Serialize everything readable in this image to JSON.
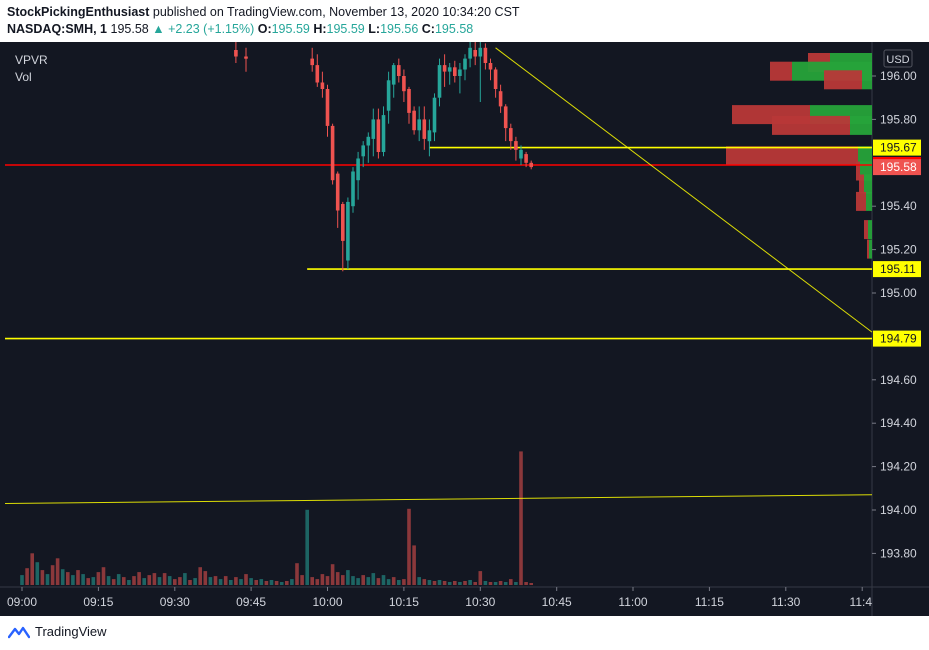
{
  "header": {
    "author": "StockPickingEnthusiast",
    "published_text": "published on TradingView.com, November 13, 2020 10:34:20 CST",
    "symbol": "NASDAQ:SMH, 1",
    "last": "195.58",
    "change": "▲ +2.23 (+1.15%)",
    "o_label": "O:",
    "o_value": "195.59",
    "h_label": "H:",
    "h_value": "195.59",
    "l_label": "L:",
    "l_value": "195.56",
    "c_label": "C:",
    "c_value": "195.58"
  },
  "indicators": [
    "VPVR",
    "Vol"
  ],
  "footer": {
    "brand": "TradingView"
  },
  "colors": {
    "background": "#131722",
    "up": "#26a69a",
    "down": "#ef5350",
    "yellow": "#ffff00",
    "red_line": "#ff0000",
    "vpvr_up": "#26a33a",
    "vpvr_down": "#b83838"
  },
  "chart_data": {
    "type": "candlestick",
    "currency": "USD",
    "x_ticks": [
      "09:00",
      "09:15",
      "09:30",
      "09:45",
      "10:00",
      "10:15",
      "10:30",
      "10:45",
      "11:00",
      "11:15",
      "11:30",
      "11:4"
    ],
    "y_ticks": [
      "196.00",
      "195.80",
      "195.40",
      "195.20",
      "195.00",
      "194.60",
      "194.40",
      "194.20",
      "194.00",
      "193.80"
    ],
    "ylim": [
      193.67,
      196.15
    ],
    "price_labels": [
      {
        "value": "195.67",
        "style": "yellow"
      },
      {
        "value": "195.59",
        "style": "red"
      },
      {
        "value": "195.58",
        "style": "current"
      },
      {
        "value": "195.11",
        "style": "yellow"
      },
      {
        "value": "194.79",
        "style": "yellow"
      }
    ],
    "horizontal_lines": [
      {
        "price": 195.67,
        "from_minute": 80,
        "color": "yellow"
      },
      {
        "price": 195.59,
        "from_minute": 0,
        "color": "red"
      },
      {
        "price": 195.11,
        "from_minute": 56,
        "color": "yellow"
      },
      {
        "price": 194.79,
        "from_minute": 0,
        "color": "yellow"
      }
    ],
    "trend_lines": [
      {
        "from": {
          "minute": 93,
          "price": 196.13
        },
        "to": {
          "minute": 180,
          "price": 194.82
        }
      },
      {
        "from": {
          "minute": 0,
          "price": 194.03
        },
        "to": {
          "minute": 180,
          "price": 194.07
        }
      }
    ],
    "candles_visible": [
      {
        "minute": 42,
        "open": 196.12,
        "high": 196.16,
        "low": 196.06,
        "close": 196.09
      },
      {
        "minute": 44,
        "open": 196.09,
        "high": 196.13,
        "low": 196.02,
        "close": 196.08
      },
      {
        "minute": 57,
        "open": 196.08,
        "high": 196.13,
        "low": 196.02,
        "close": 196.05
      },
      {
        "minute": 58,
        "open": 196.05,
        "high": 196.1,
        "low": 195.95,
        "close": 195.97
      },
      {
        "minute": 59,
        "open": 195.97,
        "high": 196.02,
        "low": 195.9,
        "close": 195.94
      },
      {
        "minute": 60,
        "open": 195.94,
        "high": 195.96,
        "low": 195.72,
        "close": 195.77
      },
      {
        "minute": 61,
        "open": 195.77,
        "high": 195.78,
        "low": 195.5,
        "close": 195.52
      },
      {
        "minute": 62,
        "open": 195.55,
        "high": 195.56,
        "low": 195.3,
        "close": 195.38
      },
      {
        "minute": 63,
        "open": 195.41,
        "high": 195.42,
        "low": 195.1,
        "close": 195.24
      },
      {
        "minute": 64,
        "open": 195.15,
        "high": 195.44,
        "low": 195.11,
        "close": 195.42
      },
      {
        "minute": 65,
        "open": 195.4,
        "high": 195.58,
        "low": 195.37,
        "close": 195.56
      },
      {
        "minute": 66,
        "open": 195.52,
        "high": 195.65,
        "low": 195.43,
        "close": 195.62
      },
      {
        "minute": 67,
        "open": 195.63,
        "high": 195.7,
        "low": 195.58,
        "close": 195.68
      },
      {
        "minute": 68,
        "open": 195.68,
        "high": 195.74,
        "low": 195.6,
        "close": 195.72
      },
      {
        "minute": 69,
        "open": 195.71,
        "high": 195.85,
        "low": 195.63,
        "close": 195.8
      },
      {
        "minute": 70,
        "open": 195.8,
        "high": 195.85,
        "low": 195.62,
        "close": 195.65
      },
      {
        "minute": 71,
        "open": 195.65,
        "high": 195.86,
        "low": 195.63,
        "close": 195.82
      },
      {
        "minute": 72,
        "open": 195.84,
        "high": 196.02,
        "low": 195.78,
        "close": 195.98
      },
      {
        "minute": 73,
        "open": 195.96,
        "high": 196.06,
        "low": 195.9,
        "close": 196.05
      },
      {
        "minute": 74,
        "open": 196.05,
        "high": 196.08,
        "low": 195.97,
        "close": 196.0
      },
      {
        "minute": 75,
        "open": 196.0,
        "high": 196.03,
        "low": 195.88,
        "close": 195.93
      },
      {
        "minute": 76,
        "open": 195.94,
        "high": 195.95,
        "low": 195.78,
        "close": 195.83
      },
      {
        "minute": 77,
        "open": 195.84,
        "high": 195.86,
        "low": 195.73,
        "close": 195.75
      },
      {
        "minute": 78,
        "open": 195.75,
        "high": 195.86,
        "low": 195.7,
        "close": 195.8
      },
      {
        "minute": 79,
        "open": 195.8,
        "high": 195.86,
        "low": 195.66,
        "close": 195.71
      },
      {
        "minute": 80,
        "open": 195.7,
        "high": 195.8,
        "low": 195.63,
        "close": 195.75
      },
      {
        "minute": 81,
        "open": 195.74,
        "high": 195.92,
        "low": 195.7,
        "close": 195.9
      },
      {
        "minute": 82,
        "open": 195.9,
        "high": 196.08,
        "low": 195.86,
        "close": 196.05
      },
      {
        "minute": 83,
        "open": 196.05,
        "high": 196.1,
        "low": 195.95,
        "close": 196.02
      },
      {
        "minute": 84,
        "open": 196.02,
        "high": 196.06,
        "low": 195.96,
        "close": 196.04
      },
      {
        "minute": 85,
        "open": 196.04,
        "high": 196.07,
        "low": 195.97,
        "close": 196.0
      },
      {
        "minute": 86,
        "open": 196.0,
        "high": 196.06,
        "low": 195.92,
        "close": 196.03
      },
      {
        "minute": 87,
        "open": 196.03,
        "high": 196.1,
        "low": 195.98,
        "close": 196.08
      },
      {
        "minute": 88,
        "open": 196.08,
        "high": 196.16,
        "low": 196.04,
        "close": 196.13
      },
      {
        "minute": 89,
        "open": 196.12,
        "high": 196.16,
        "low": 196.05,
        "close": 196.09
      },
      {
        "minute": 90,
        "open": 196.09,
        "high": 196.16,
        "low": 195.88,
        "close": 196.13
      },
      {
        "minute": 91,
        "open": 196.13,
        "high": 196.15,
        "low": 196.03,
        "close": 196.06
      },
      {
        "minute": 92,
        "open": 196.06,
        "high": 196.08,
        "low": 195.98,
        "close": 196.03
      },
      {
        "minute": 93,
        "open": 196.03,
        "high": 196.04,
        "low": 195.9,
        "close": 195.94
      },
      {
        "minute": 94,
        "open": 195.93,
        "high": 195.96,
        "low": 195.83,
        "close": 195.86
      },
      {
        "minute": 95,
        "open": 195.86,
        "high": 195.87,
        "low": 195.7,
        "close": 195.76
      },
      {
        "minute": 96,
        "open": 195.76,
        "high": 195.78,
        "low": 195.66,
        "close": 195.7
      },
      {
        "minute": 97,
        "open": 195.7,
        "high": 195.72,
        "low": 195.61,
        "close": 195.66
      },
      {
        "minute": 98,
        "open": 195.62,
        "high": 195.68,
        "low": 195.59,
        "close": 195.66
      },
      {
        "minute": 99,
        "open": 195.64,
        "high": 195.65,
        "low": 195.58,
        "close": 195.6
      },
      {
        "minute": 100,
        "open": 195.6,
        "high": 195.61,
        "low": 195.57,
        "close": 195.58
      }
    ],
    "volume_bars": [
      {
        "minute": 0,
        "value": 10,
        "dir": "up"
      },
      {
        "minute": 1,
        "value": 17,
        "dir": "down"
      },
      {
        "minute": 2,
        "value": 32,
        "dir": "down"
      },
      {
        "minute": 3,
        "value": 23,
        "dir": "up"
      },
      {
        "minute": 4,
        "value": 15,
        "dir": "down"
      },
      {
        "minute": 5,
        "value": 11,
        "dir": "up"
      },
      {
        "minute": 6,
        "value": 20,
        "dir": "down"
      },
      {
        "minute": 7,
        "value": 27,
        "dir": "down"
      },
      {
        "minute": 8,
        "value": 16,
        "dir": "up"
      },
      {
        "minute": 9,
        "value": 13,
        "dir": "down"
      },
      {
        "minute": 10,
        "value": 10,
        "dir": "up"
      },
      {
        "minute": 11,
        "value": 15,
        "dir": "down"
      },
      {
        "minute": 12,
        "value": 11,
        "dir": "up"
      },
      {
        "minute": 13,
        "value": 7,
        "dir": "down"
      },
      {
        "minute": 14,
        "value": 8,
        "dir": "up"
      },
      {
        "minute": 15,
        "value": 13,
        "dir": "down"
      },
      {
        "minute": 16,
        "value": 18,
        "dir": "down"
      },
      {
        "minute": 17,
        "value": 9,
        "dir": "up"
      },
      {
        "minute": 18,
        "value": 6,
        "dir": "down"
      },
      {
        "minute": 19,
        "value": 11,
        "dir": "up"
      },
      {
        "minute": 20,
        "value": 8,
        "dir": "down"
      },
      {
        "minute": 21,
        "value": 5,
        "dir": "up"
      },
      {
        "minute": 22,
        "value": 9,
        "dir": "down"
      },
      {
        "minute": 23,
        "value": 13,
        "dir": "down"
      },
      {
        "minute": 24,
        "value": 7,
        "dir": "up"
      },
      {
        "minute": 25,
        "value": 10,
        "dir": "down"
      },
      {
        "minute": 26,
        "value": 12,
        "dir": "down"
      },
      {
        "minute": 27,
        "value": 8,
        "dir": "up"
      },
      {
        "minute": 28,
        "value": 12,
        "dir": "down"
      },
      {
        "minute": 29,
        "value": 9,
        "dir": "up"
      },
      {
        "minute": 30,
        "value": 6,
        "dir": "down"
      },
      {
        "minute": 31,
        "value": 8,
        "dir": "down"
      },
      {
        "minute": 32,
        "value": 12,
        "dir": "up"
      },
      {
        "minute": 33,
        "value": 5,
        "dir": "down"
      },
      {
        "minute": 34,
        "value": 7,
        "dir": "up"
      },
      {
        "minute": 35,
        "value": 18,
        "dir": "down"
      },
      {
        "minute": 36,
        "value": 14,
        "dir": "down"
      },
      {
        "minute": 37,
        "value": 8,
        "dir": "up"
      },
      {
        "minute": 38,
        "value": 9,
        "dir": "down"
      },
      {
        "minute": 39,
        "value": 6,
        "dir": "up"
      },
      {
        "minute": 40,
        "value": 9,
        "dir": "down"
      },
      {
        "minute": 41,
        "value": 5,
        "dir": "up"
      },
      {
        "minute": 42,
        "value": 8,
        "dir": "down"
      },
      {
        "minute": 43,
        "value": 6,
        "dir": "up"
      },
      {
        "minute": 44,
        "value": 11,
        "dir": "down"
      },
      {
        "minute": 45,
        "value": 7,
        "dir": "up"
      },
      {
        "minute": 46,
        "value": 5,
        "dir": "down"
      },
      {
        "minute": 47,
        "value": 6,
        "dir": "up"
      },
      {
        "minute": 48,
        "value": 4,
        "dir": "down"
      },
      {
        "minute": 49,
        "value": 5,
        "dir": "up"
      },
      {
        "minute": 50,
        "value": 4,
        "dir": "down"
      },
      {
        "minute": 51,
        "value": 3,
        "dir": "up"
      },
      {
        "minute": 52,
        "value": 4,
        "dir": "down"
      },
      {
        "minute": 53,
        "value": 6,
        "dir": "up"
      },
      {
        "minute": 54,
        "value": 22,
        "dir": "down"
      },
      {
        "minute": 55,
        "value": 10,
        "dir": "down"
      },
      {
        "minute": 56,
        "value": 76,
        "dir": "up"
      },
      {
        "minute": 57,
        "value": 8,
        "dir": "down"
      },
      {
        "minute": 58,
        "value": 6,
        "dir": "down"
      },
      {
        "minute": 59,
        "value": 11,
        "dir": "down"
      },
      {
        "minute": 60,
        "value": 9,
        "dir": "down"
      },
      {
        "minute": 61,
        "value": 21,
        "dir": "down"
      },
      {
        "minute": 62,
        "value": 13,
        "dir": "down"
      },
      {
        "minute": 63,
        "value": 10,
        "dir": "down"
      },
      {
        "minute": 64,
        "value": 15,
        "dir": "up"
      },
      {
        "minute": 65,
        "value": 9,
        "dir": "up"
      },
      {
        "minute": 66,
        "value": 7,
        "dir": "up"
      },
      {
        "minute": 67,
        "value": 10,
        "dir": "down"
      },
      {
        "minute": 68,
        "value": 8,
        "dir": "up"
      },
      {
        "minute": 69,
        "value": 12,
        "dir": "up"
      },
      {
        "minute": 70,
        "value": 7,
        "dir": "down"
      },
      {
        "minute": 71,
        "value": 10,
        "dir": "up"
      },
      {
        "minute": 72,
        "value": 6,
        "dir": "up"
      },
      {
        "minute": 73,
        "value": 8,
        "dir": "down"
      },
      {
        "minute": 74,
        "value": 5,
        "dir": "up"
      },
      {
        "minute": 75,
        "value": 6,
        "dir": "down"
      },
      {
        "minute": 76,
        "value": 77,
        "dir": "down"
      },
      {
        "minute": 77,
        "value": 40,
        "dir": "down"
      },
      {
        "minute": 78,
        "value": 8,
        "dir": "up"
      },
      {
        "minute": 79,
        "value": 6,
        "dir": "down"
      },
      {
        "minute": 80,
        "value": 5,
        "dir": "up"
      },
      {
        "minute": 81,
        "value": 4,
        "dir": "down"
      },
      {
        "minute": 82,
        "value": 5,
        "dir": "up"
      },
      {
        "minute": 83,
        "value": 4,
        "dir": "down"
      },
      {
        "minute": 84,
        "value": 3,
        "dir": "up"
      },
      {
        "minute": 85,
        "value": 4,
        "dir": "down"
      },
      {
        "minute": 86,
        "value": 3,
        "dir": "up"
      },
      {
        "minute": 87,
        "value": 4,
        "dir": "down"
      },
      {
        "minute": 88,
        "value": 5,
        "dir": "up"
      },
      {
        "minute": 89,
        "value": 3,
        "dir": "down"
      },
      {
        "minute": 90,
        "value": 14,
        "dir": "down"
      },
      {
        "minute": 91,
        "value": 4,
        "dir": "up"
      },
      {
        "minute": 92,
        "value": 3,
        "dir": "down"
      },
      {
        "minute": 93,
        "value": 3,
        "dir": "up"
      },
      {
        "minute": 94,
        "value": 4,
        "dir": "down"
      },
      {
        "minute": 95,
        "value": 3,
        "dir": "up"
      },
      {
        "minute": 96,
        "value": 6,
        "dir": "down"
      },
      {
        "minute": 97,
        "value": 3,
        "dir": "up"
      },
      {
        "minute": 98,
        "value": 135,
        "dir": "down"
      },
      {
        "minute": 99,
        "value": 3,
        "dir": "down"
      },
      {
        "minute": 100,
        "value": 2,
        "dir": "down"
      }
    ],
    "volume_profile": [
      {
        "price": 196.06,
        "up": 42,
        "down": 22
      },
      {
        "price": 196.02,
        "up": 80,
        "down": 22
      },
      {
        "price": 195.98,
        "up": 10,
        "down": 38
      },
      {
        "price": 195.82,
        "up": 62,
        "down": 78
      },
      {
        "price": 195.77,
        "up": 22,
        "down": 78
      },
      {
        "price": 195.63,
        "up": 14,
        "down": 132
      },
      {
        "price": 195.56,
        "up": 12,
        "down": 4
      },
      {
        "price": 195.5,
        "up": 8,
        "down": 5
      },
      {
        "price": 195.42,
        "up": 6,
        "down": 10
      },
      {
        "price": 195.29,
        "up": 4,
        "down": 4
      },
      {
        "price": 195.2,
        "up": 3,
        "down": 2
      }
    ]
  }
}
